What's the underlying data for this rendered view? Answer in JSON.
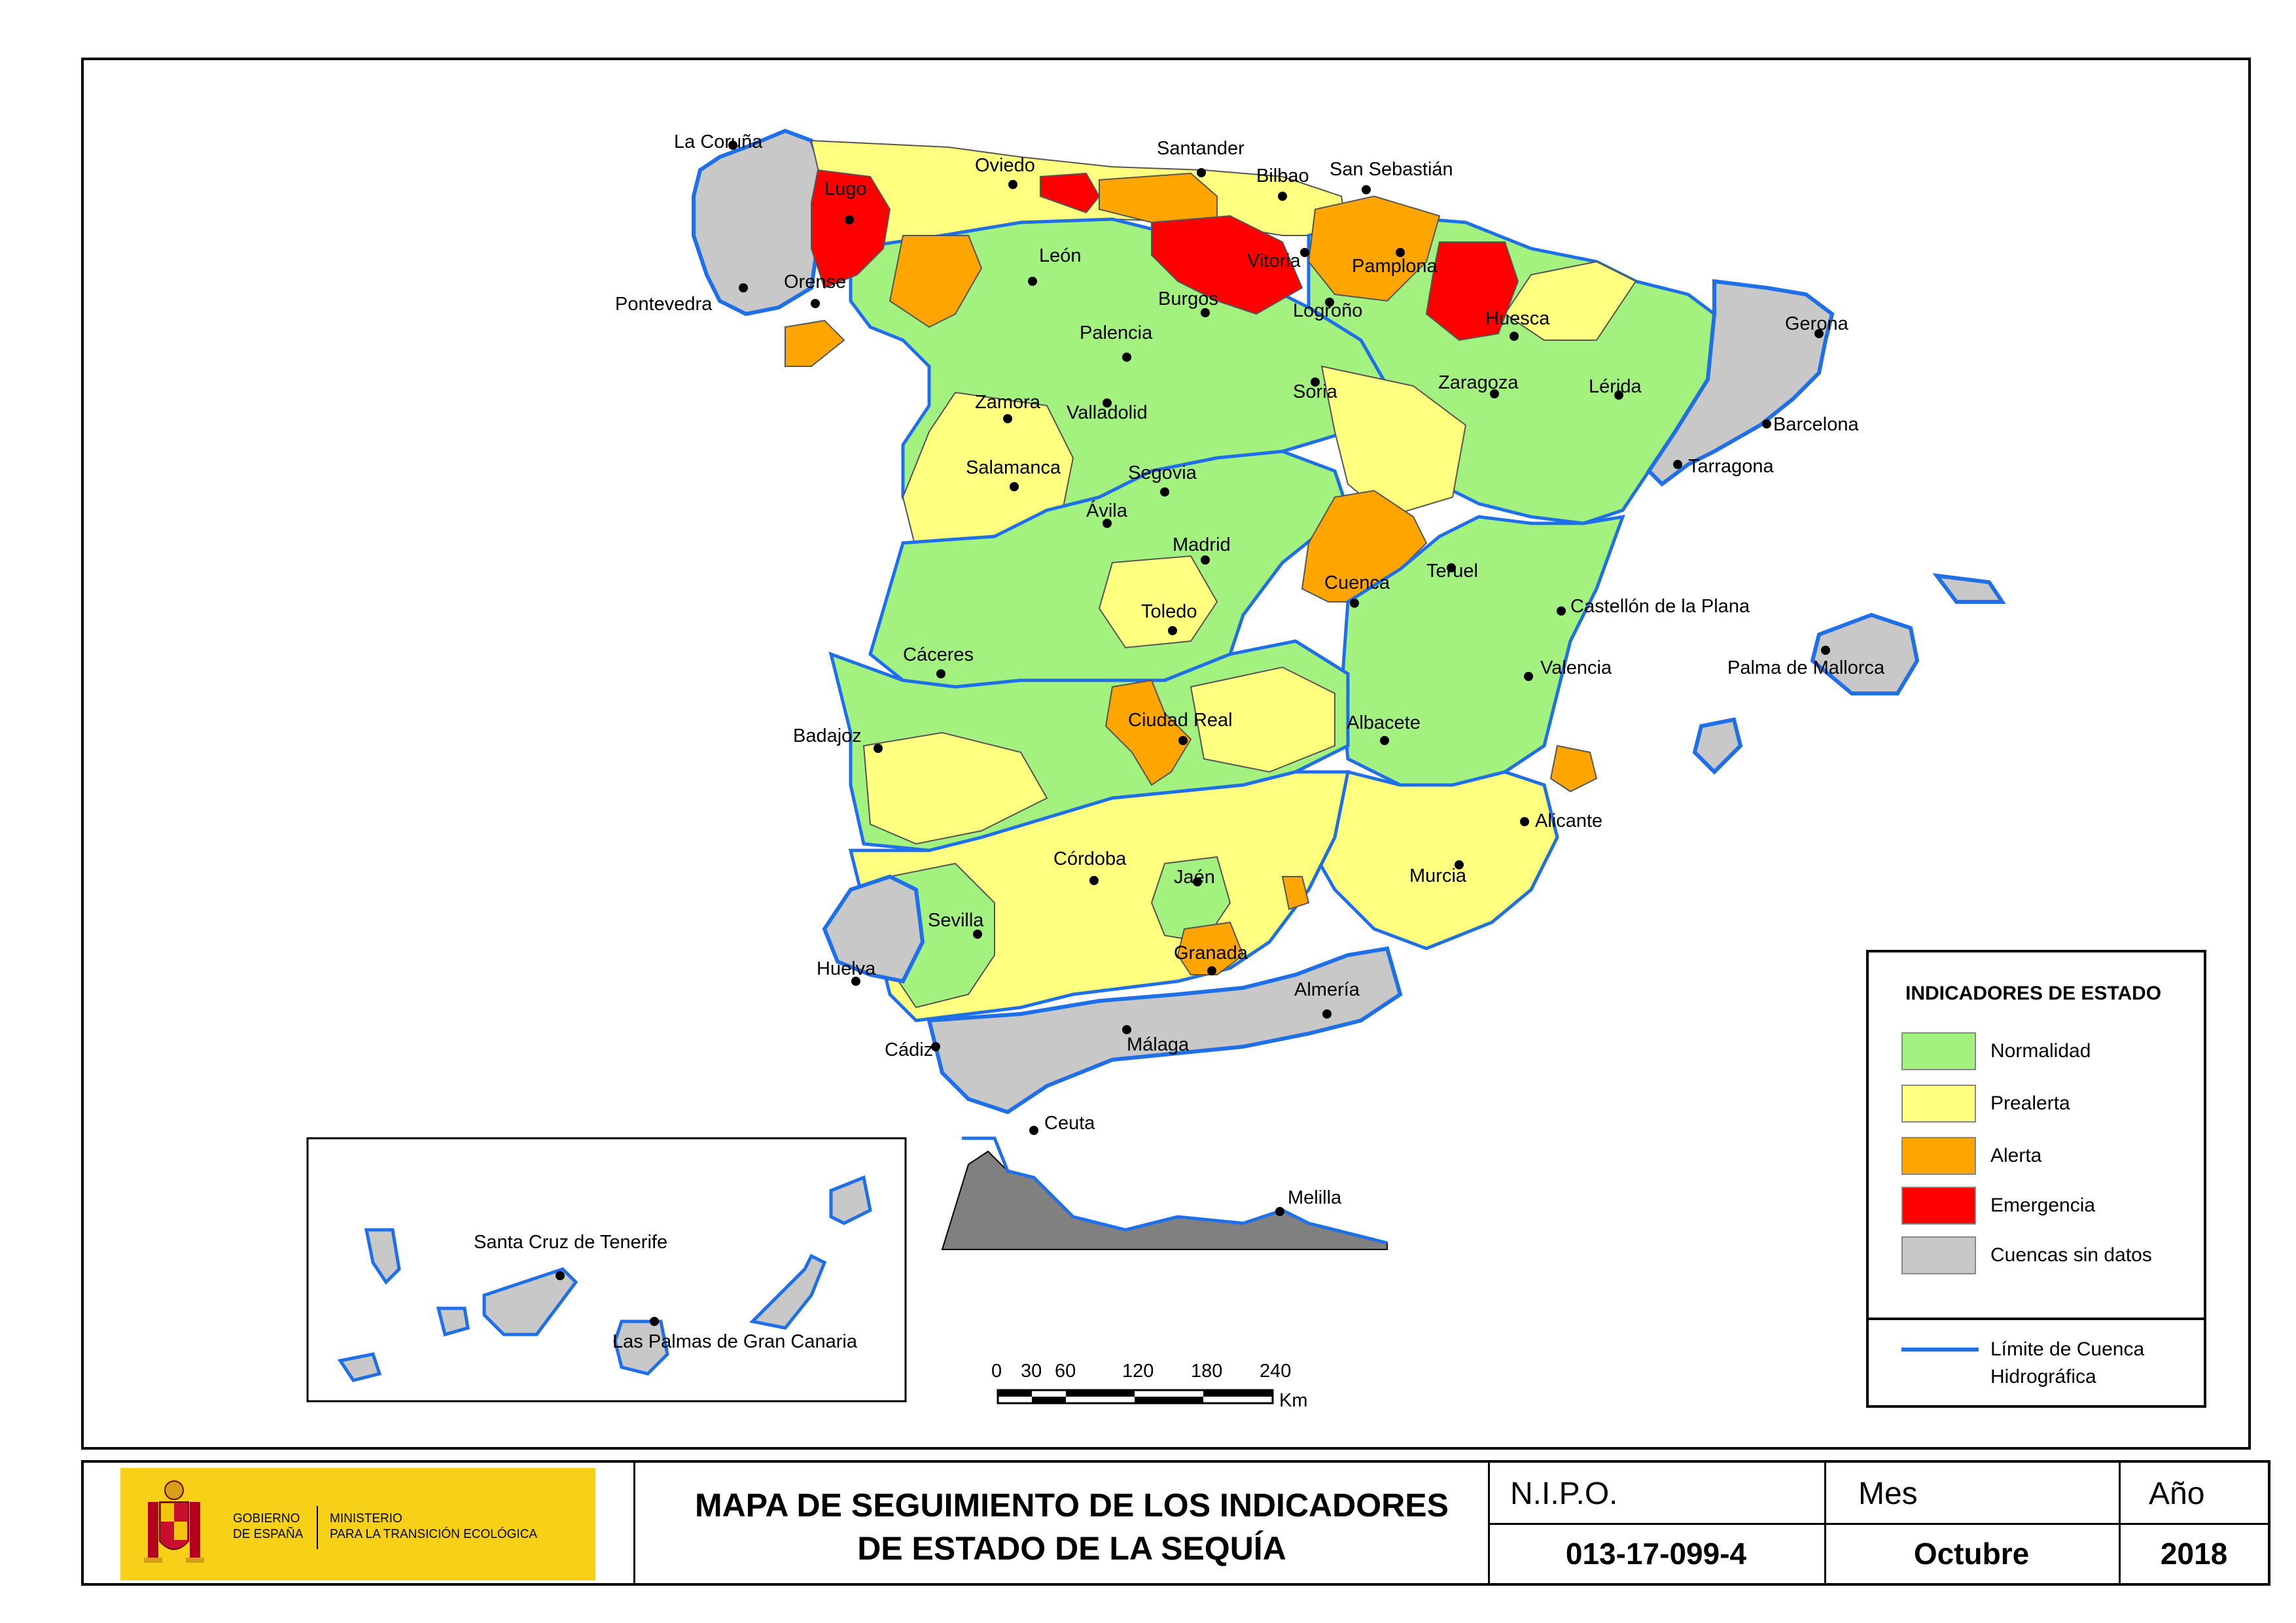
{
  "map": {
    "cities": [
      {
        "name": "La Coruña"
      },
      {
        "name": "Lugo"
      },
      {
        "name": "Oviedo"
      },
      {
        "name": "Santander"
      },
      {
        "name": "Bilbao"
      },
      {
        "name": "San Sebastián"
      },
      {
        "name": "León"
      },
      {
        "name": "Vitoria"
      },
      {
        "name": "Pamplona"
      },
      {
        "name": "Orense"
      },
      {
        "name": "Pontevedra"
      },
      {
        "name": "Burgos"
      },
      {
        "name": "Logroño"
      },
      {
        "name": "Huesca"
      },
      {
        "name": "Gerona"
      },
      {
        "name": "Palencia"
      },
      {
        "name": "Zaragoza"
      },
      {
        "name": "Soria"
      },
      {
        "name": "Lérida"
      },
      {
        "name": "Zamora"
      },
      {
        "name": "Valladolid"
      },
      {
        "name": "Barcelona"
      },
      {
        "name": "Tarragona"
      },
      {
        "name": "Salamanca"
      },
      {
        "name": "Segovia"
      },
      {
        "name": "Ávila"
      },
      {
        "name": "Madrid"
      },
      {
        "name": "Teruel"
      },
      {
        "name": "Cuenca"
      },
      {
        "name": "Castellón de la Plana"
      },
      {
        "name": "Toledo"
      },
      {
        "name": "Palma de Mallorca"
      },
      {
        "name": "Cáceres"
      },
      {
        "name": "Valencia"
      },
      {
        "name": "Ciudad Real"
      },
      {
        "name": "Badajoz"
      },
      {
        "name": "Albacete"
      },
      {
        "name": "Alicante"
      },
      {
        "name": "Córdoba"
      },
      {
        "name": "Jaén"
      },
      {
        "name": "Murcia"
      },
      {
        "name": "Sevilla"
      },
      {
        "name": "Granada"
      },
      {
        "name": "Huelva"
      },
      {
        "name": "Almería"
      },
      {
        "name": "Málaga"
      },
      {
        "name": "Cádiz"
      },
      {
        "name": "Ceuta"
      },
      {
        "name": "Melilla"
      },
      {
        "name": "Santa Cruz de Tenerife"
      },
      {
        "name": "Las Palmas de Gran Canaria"
      }
    ],
    "colors": {
      "normalidad": "#a3f27f",
      "prealerta": "#ffff80",
      "alerta": "#ffa500",
      "emergencia": "#ff0000",
      "sin_datos": "#c8c8c8",
      "limite": "#1e6fe8",
      "sea": "#ffffff"
    },
    "scale": {
      "ticks": [
        "0",
        "30",
        "60",
        "120",
        "180",
        "240"
      ],
      "unit": "Km"
    }
  },
  "legend": {
    "title": "INDICADORES DE ESTADO",
    "items": [
      {
        "label": "Normalidad",
        "color": "#a3f27f"
      },
      {
        "label": "Prealerta",
        "color": "#ffff80"
      },
      {
        "label": "Alerta",
        "color": "#ffa500"
      },
      {
        "label": "Emergencia",
        "color": "#ff0000"
      },
      {
        "label": "Cuencas sin datos",
        "color": "#c8c8c8"
      }
    ],
    "line_label_1": "Límite de Cuenca",
    "line_label_2": "Hidrográfica"
  },
  "footer": {
    "logo_gov_1": "GOBIERNO",
    "logo_gov_2": "DE ESPAÑA",
    "logo_min_1": "MINISTERIO",
    "logo_min_2": "PARA LA TRANSICIÓN ECOLÓGICA",
    "title_1": "MAPA DE SEGUIMIENTO DE LOS INDICADORES",
    "title_2": "DE ESTADO DE LA SEQUÍA",
    "nipo_label": "N.I.P.O.",
    "nipo_value": "013-17-099-4",
    "mes_label": "Mes",
    "mes_value": "Octubre",
    "ano_label": "Año",
    "ano_value": "2018"
  }
}
